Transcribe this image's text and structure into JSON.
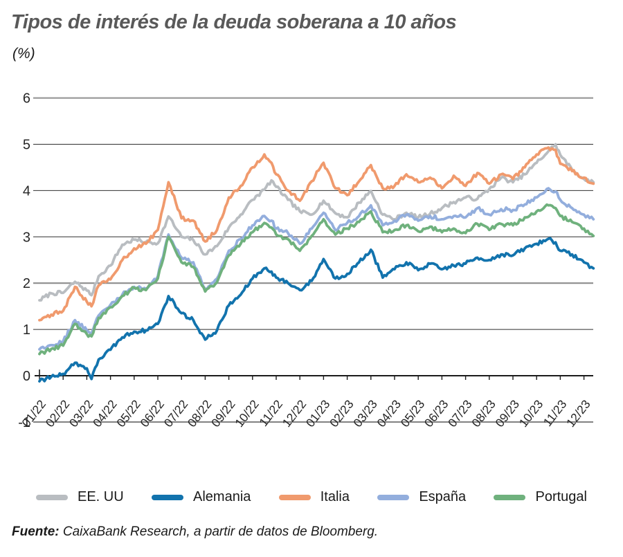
{
  "title": "Tipos de interés de la deuda soberana a 10 años",
  "subtitle": "(%)",
  "source": {
    "label": "Fuente:",
    "text": " CaixaBank Research, a partir de datos de Bloomberg."
  },
  "chart_data": {
    "type": "line",
    "title": "Tipos de interés de la deuda soberana a 10 años",
    "unit_label": "(%)",
    "xlabel": "",
    "ylabel": "",
    "ylim": [
      -1,
      6
    ],
    "y_ticks": [
      6,
      5,
      4,
      3,
      2,
      1,
      0,
      -1
    ],
    "grid": "horizontal",
    "legend_position": "bottom",
    "x_tick_labels": [
      "01/22",
      "02/22",
      "03/22",
      "04/22",
      "05/22",
      "06/22",
      "07/22",
      "08/22",
      "09/22",
      "10/22",
      "11/22",
      "12/22",
      "01/23",
      "02/23",
      "03/23",
      "04/23",
      "05/23",
      "06/23",
      "07/23",
      "08/23",
      "09/23",
      "10/23",
      "11/23",
      "12/23"
    ],
    "x_unit": "months from 01/2022 (decimal = intra-month position)",
    "x": [
      0,
      0.5,
      1,
      1.5,
      2,
      2.2,
      2.5,
      3,
      3.5,
      4,
      4.5,
      5,
      5.45,
      6,
      6.5,
      7,
      7.5,
      8,
      8.5,
      9,
      9.5,
      9.8,
      10,
      10.5,
      11,
      11.5,
      12,
      12.5,
      13,
      13.5,
      14,
      14.5,
      15,
      15.5,
      16,
      16.5,
      17,
      17.5,
      18,
      18.5,
      19,
      19.5,
      20,
      20.5,
      21,
      21.5,
      21.8,
      22,
      22.5,
      23,
      23.4
    ],
    "series": [
      {
        "name": "EE. UU",
        "color": "#b9bdc1",
        "values": [
          1.63,
          1.78,
          1.79,
          2.03,
          1.84,
          1.74,
          2.15,
          2.38,
          2.83,
          2.94,
          2.89,
          2.86,
          3.44,
          3.0,
          2.93,
          2.62,
          2.8,
          3.2,
          3.48,
          3.8,
          4.02,
          4.22,
          4.08,
          3.8,
          3.55,
          3.48,
          3.78,
          3.51,
          3.42,
          3.74,
          3.99,
          3.48,
          3.38,
          3.52,
          3.42,
          3.5,
          3.62,
          3.75,
          3.85,
          3.82,
          4.03,
          4.28,
          4.18,
          4.35,
          4.6,
          4.85,
          5.0,
          4.77,
          4.45,
          4.25,
          4.18
        ]
      },
      {
        "name": "Alemania",
        "color": "#1273ad",
        "values": [
          -0.12,
          -0.02,
          0.04,
          0.28,
          0.16,
          -0.07,
          0.35,
          0.56,
          0.83,
          0.95,
          0.98,
          1.12,
          1.72,
          1.35,
          1.2,
          0.78,
          0.98,
          1.52,
          1.75,
          2.1,
          2.32,
          2.25,
          2.12,
          2.0,
          1.85,
          2.05,
          2.52,
          2.1,
          2.2,
          2.45,
          2.72,
          2.12,
          2.3,
          2.45,
          2.28,
          2.42,
          2.3,
          2.38,
          2.42,
          2.55,
          2.5,
          2.62,
          2.6,
          2.75,
          2.85,
          2.96,
          2.88,
          2.7,
          2.62,
          2.45,
          2.32
        ]
      },
      {
        "name": "Italia",
        "color": "#f09a6d",
        "values": [
          1.2,
          1.32,
          1.4,
          1.92,
          1.6,
          1.5,
          1.95,
          2.08,
          2.5,
          2.75,
          2.85,
          3.15,
          4.18,
          3.4,
          3.35,
          2.9,
          3.15,
          3.85,
          4.1,
          4.5,
          4.78,
          4.6,
          4.35,
          4.0,
          3.78,
          4.2,
          4.6,
          4.05,
          3.9,
          4.2,
          4.55,
          4.05,
          4.1,
          4.35,
          4.18,
          4.28,
          4.05,
          4.32,
          4.1,
          4.38,
          4.15,
          4.35,
          4.25,
          4.5,
          4.78,
          4.93,
          4.88,
          4.58,
          4.42,
          4.28,
          4.15
        ]
      },
      {
        "name": "España",
        "color": "#93aedd",
        "values": [
          0.57,
          0.66,
          0.74,
          1.2,
          0.98,
          0.92,
          1.3,
          1.53,
          1.75,
          1.92,
          1.88,
          2.15,
          3.05,
          2.55,
          2.45,
          1.88,
          2.1,
          2.7,
          2.95,
          3.25,
          3.45,
          3.35,
          3.18,
          3.08,
          2.85,
          3.18,
          3.52,
          3.15,
          3.3,
          3.45,
          3.68,
          3.25,
          3.35,
          3.48,
          3.35,
          3.45,
          3.38,
          3.45,
          3.42,
          3.62,
          3.48,
          3.6,
          3.58,
          3.7,
          3.85,
          4.05,
          3.98,
          3.8,
          3.62,
          3.48,
          3.38
        ]
      },
      {
        "name": "Portugal",
        "color": "#6fb17d",
        "values": [
          0.47,
          0.58,
          0.65,
          1.12,
          0.9,
          0.85,
          1.25,
          1.48,
          1.72,
          1.9,
          1.85,
          2.1,
          3.0,
          2.45,
          2.35,
          1.82,
          2.02,
          2.6,
          2.85,
          3.1,
          3.3,
          3.2,
          3.05,
          2.95,
          2.7,
          3.02,
          3.38,
          3.05,
          3.18,
          3.32,
          3.55,
          3.1,
          3.15,
          3.25,
          3.12,
          3.22,
          3.1,
          3.18,
          3.08,
          3.28,
          3.15,
          3.28,
          3.25,
          3.42,
          3.55,
          3.68,
          3.62,
          3.45,
          3.32,
          3.18,
          3.02
        ]
      }
    ]
  }
}
